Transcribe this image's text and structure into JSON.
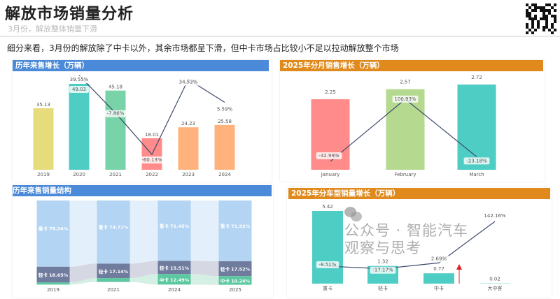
{
  "header": {
    "title": "解放市场销量分析",
    "subtitle": "3月份，解放整体销量下滑",
    "description": "细分来看，3月份的解放除了中卡以外，其余市场都呈下滑，但中卡市场占比较小不足以拉动解放整个市场"
  },
  "watermark": "公众号 · 智能汽车观察与思考",
  "colors": {
    "blue_bar": "#4a8ad8",
    "orange_bar": "#e08a1e",
    "line": "#3d4a6b"
  },
  "chart_data": [
    {
      "type": "bar",
      "title": "历年来售增长（万辆）",
      "categories": [
        "2019",
        "2020",
        "2021",
        "2022",
        "2023",
        "2024"
      ],
      "values": [
        35.13,
        49.03,
        45.18,
        18.01,
        24.23,
        25.58
      ],
      "value_labels": [
        "35.13",
        "49.03",
        "45.18",
        "18.01",
        "24.23",
        "25.58"
      ],
      "growth": [
        null,
        39.55,
        -7.86,
        -60.13,
        34.52,
        5.59
      ],
      "growth_labels": [
        "",
        "39.55%",
        "-7.86%",
        "-60.13%",
        "34.52%",
        "5.59%"
      ],
      "bar_colors": [
        "#e6dc7c",
        "#4ecdc4",
        "#79d3a9",
        "#ff8c8a",
        "#ffb27c",
        "#ffb27c"
      ]
    },
    {
      "type": "bar",
      "title": "2025年分月销售增长（万辆）",
      "categories": [
        "January",
        "February",
        "March"
      ],
      "values": [
        2.25,
        2.57,
        2.72
      ],
      "value_labels": [
        "2.25",
        "2.57",
        "2.72"
      ],
      "growth": [
        -32.99,
        100.93,
        -23.18
      ],
      "growth_labels": [
        "-32.99%",
        "100.93%",
        "-23.18%"
      ],
      "bar_colors": [
        "#ff8c8a",
        "#b5d98f",
        "#4ecdc4"
      ]
    },
    {
      "type": "bar",
      "title": "历年来售销量结构",
      "stacked": true,
      "categories": [
        "2019",
        "2021",
        "2024",
        "2025"
      ],
      "series": [
        {
          "name": "重卡",
          "values": [
            78.34,
            74.71,
            71.45,
            71.92
          ],
          "labels": [
            "重卡 78.34%",
            "重卡 74.71%",
            "重卡 71.45%",
            "重卡 71.92%"
          ],
          "color": "#b3d4f2"
        },
        {
          "name": "轻卡",
          "values": [
            18.65,
            17.14,
            15.51,
            17.52
          ],
          "labels": [
            "轻卡 18.65%",
            "轻卡 17.14%",
            "轻卡 15.51%",
            "轻卡 17.52%"
          ],
          "color": "#6f7c9e"
        },
        {
          "name": "中卡",
          "values": [
            2.5,
            4.5,
            12.49,
            10.24
          ],
          "labels": [
            "",
            "",
            "中卡 12.49%",
            "中卡 10.24%"
          ],
          "color": "#5cc8a0"
        }
      ]
    },
    {
      "type": "bar",
      "title": "2025年分车型销量增长（万辆）",
      "categories": [
        "重卡",
        "轻卡",
        "中卡",
        "大中客"
      ],
      "values": [
        5.42,
        1.32,
        0.77,
        0.02
      ],
      "value_labels": [
        "5.42",
        "1.32",
        "0.77",
        "0.02"
      ],
      "growth": [
        -8.51,
        -17.17,
        2.69,
        142.16
      ],
      "growth_labels": [
        "-8.51%",
        "-17.17%",
        "2.69%",
        "142.16%"
      ],
      "bar_colors": [
        "#4ecdc4",
        "#4ecdc4",
        "#4ecdc4",
        "#4ecdc4"
      ]
    }
  ]
}
